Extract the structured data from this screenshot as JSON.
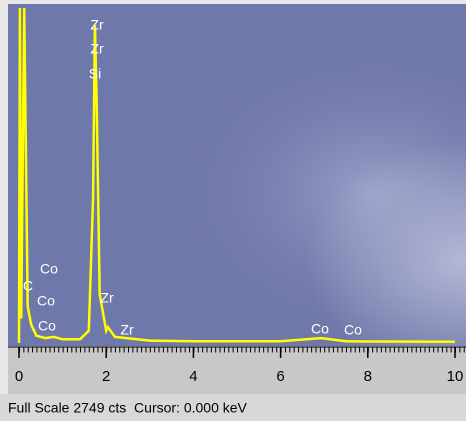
{
  "chart_data": {
    "type": "line",
    "x": [
      0,
      0.02,
      0.05,
      0.12,
      0.2,
      0.28,
      0.4,
      0.6,
      0.8,
      1.0,
      1.4,
      1.6,
      1.7,
      1.74,
      1.78,
      1.85,
      2.0,
      2.04,
      2.2,
      3,
      4,
      5,
      6,
      6.93,
      7.5,
      8,
      10
    ],
    "series": [
      {
        "color": "#ffff00",
        "values": [
          0,
          2749,
          200,
          2749,
          300,
          150,
          60,
          40,
          50,
          30,
          30,
          100,
          1200,
          2610,
          2000,
          400,
          100,
          130,
          50,
          20,
          15,
          15,
          15,
          40,
          15,
          12,
          10
        ]
      }
    ],
    "xlim": [
      0,
      10
    ],
    "xticks": [
      0,
      2,
      4,
      6,
      8,
      10
    ],
    "ylim": [
      0,
      2749
    ],
    "annotations": [
      "Zr",
      "Zr",
      "Si",
      "C",
      "Co",
      "Co",
      "Co",
      "Zr",
      "Zr",
      "Co",
      "Co"
    ],
    "status": "Full Scale 2749 cts  Cursor: 0.000 keV"
  }
}
